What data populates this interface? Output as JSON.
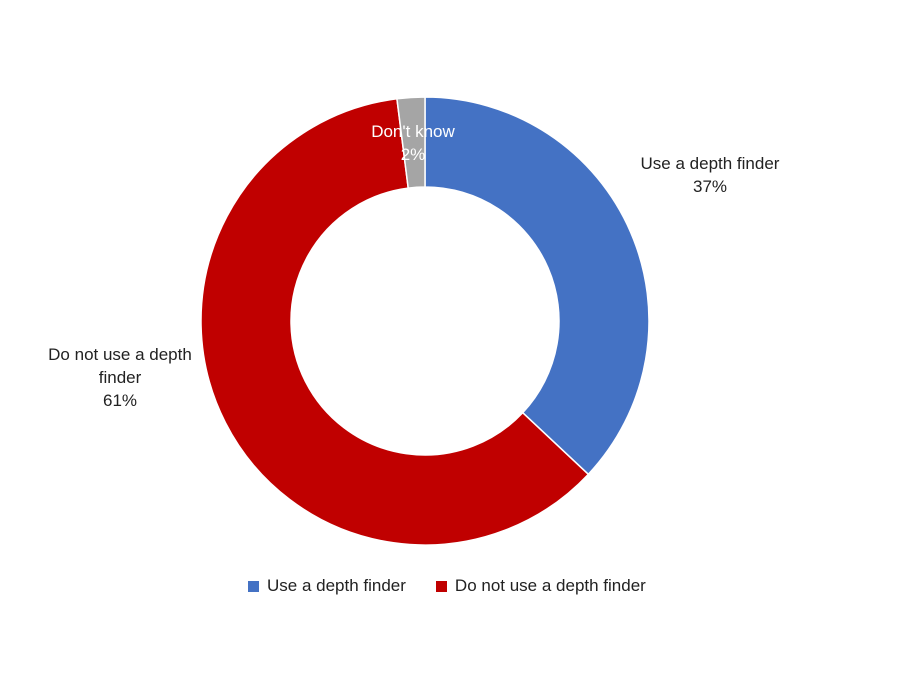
{
  "chart_data": {
    "type": "pie",
    "donut": true,
    "slices": [
      {
        "label": "Use a depth finder",
        "value": 37,
        "display": "37%",
        "color": "#4472C4"
      },
      {
        "label": "Do not use a depth finder",
        "value": 61,
        "display": "61%",
        "color": "#C00000"
      },
      {
        "label": "Don't know",
        "value": 2,
        "display": "2%",
        "color": "#A5A5A5"
      }
    ],
    "legend": {
      "placement": "bottom",
      "entries": [
        "Use a depth finder",
        "Do not use a depth finder"
      ]
    }
  },
  "labels": {
    "use": {
      "line1": "Use a depth finder",
      "line2": "37%"
    },
    "donot": {
      "line1": "Do not use a depth",
      "line2": "finder",
      "line3": "61%"
    },
    "dontknow": {
      "line1": "Don't know",
      "line2": "2%"
    }
  }
}
